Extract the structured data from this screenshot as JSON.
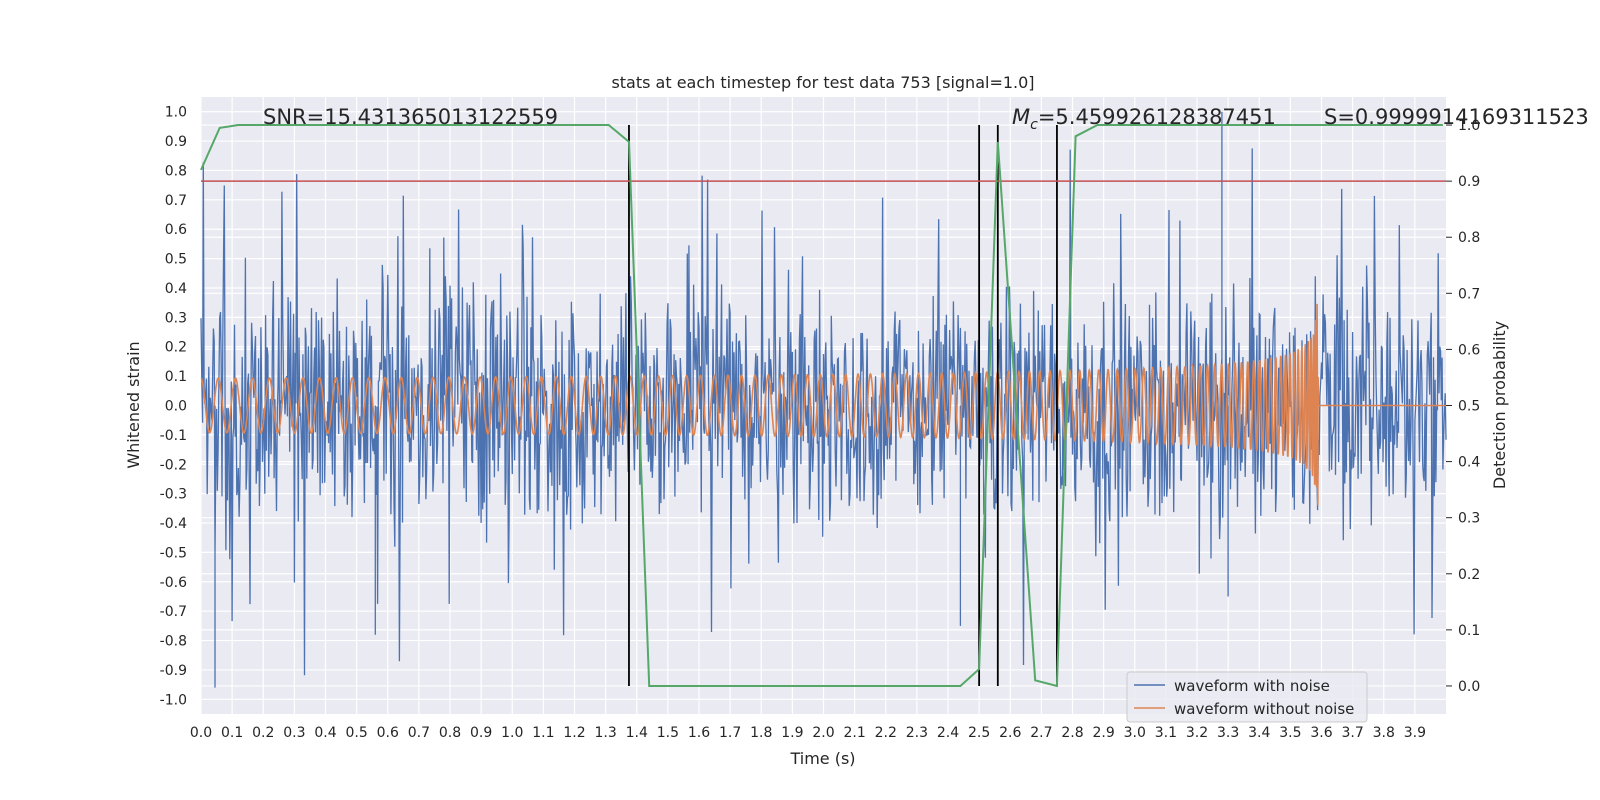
{
  "chart_data": {
    "type": "line",
    "title": "stats at each timestep for test data 753 [signal=1.0]",
    "xlabel": "Time (s)",
    "ylabel_left": "Whitened strain",
    "ylabel_right": "Detection probability",
    "xlim": [
      0.0,
      4.0
    ],
    "ylim_left": [
      -1.05,
      1.05
    ],
    "ylim_right": [
      -0.05,
      1.05
    ],
    "x_ticks": [
      "0.0",
      "0.1",
      "0.2",
      "0.3",
      "0.4",
      "0.5",
      "0.6",
      "0.7",
      "0.8",
      "0.9",
      "1.0",
      "1.1",
      "1.2",
      "1.3",
      "1.4",
      "1.5",
      "1.6",
      "1.7",
      "1.8",
      "1.9",
      "2.0",
      "2.1",
      "2.2",
      "2.3",
      "2.4",
      "2.5",
      "2.6",
      "2.7",
      "2.8",
      "2.9",
      "3.0",
      "3.1",
      "3.2",
      "3.3",
      "3.4",
      "3.5",
      "3.6",
      "3.7",
      "3.8",
      "3.9"
    ],
    "y_ticks_left": [
      "1.0",
      "0.9",
      "0.8",
      "0.7",
      "0.6",
      "0.5",
      "0.4",
      "0.3",
      "0.2",
      "0.1",
      "0.0",
      "-0.1",
      "-0.2",
      "-0.3",
      "-0.4",
      "-0.5",
      "-0.6",
      "-0.7",
      "-0.8",
      "-0.9",
      "-1.0"
    ],
    "y_ticks_right": [
      "1.0",
      "0.9",
      "0.8",
      "0.7",
      "0.6",
      "0.5",
      "0.4",
      "0.3",
      "0.2",
      "0.1",
      "0.0"
    ],
    "grid": true,
    "legend_position": "bottom-right",
    "threshold": 0.9,
    "threshold_color": "#c44e52",
    "vertical_lines": [
      1.375,
      2.5,
      2.56,
      2.75
    ],
    "annotations": {
      "snr": "SNR=15.431365013122559",
      "mc_symbol": "M",
      "mc_subscript": "c",
      "mc_value": "=5.459926128387451",
      "s": "S=0.9999914169311523"
    },
    "series": [
      {
        "name": "waveform with noise",
        "color": "#4c72b0",
        "kind": "noise",
        "amplitude_range": [
          -0.96,
          1.0
        ]
      },
      {
        "name": "waveform without noise",
        "color": "#dd8452",
        "kind": "chirp",
        "amplitude_start": 0.035,
        "amplitude_end": 0.35,
        "merger_time": 3.59
      },
      {
        "name": "detection probability",
        "color": "#55a868",
        "axis": "right",
        "x": [
          0.0,
          0.06,
          0.12,
          0.5,
          1.0,
          1.31,
          1.375,
          1.44,
          1.6,
          2.0,
          2.3,
          2.44,
          2.5,
          2.56,
          2.68,
          2.75,
          2.81,
          2.88,
          3.0,
          3.5,
          3.99
        ],
        "y": [
          0.92,
          0.995,
          1.0,
          1.0,
          1.0,
          1.0,
          0.97,
          0.0,
          0.0,
          0.0,
          0.0,
          0.0,
          0.03,
          0.97,
          0.01,
          0.0,
          0.98,
          1.0,
          1.0,
          1.0,
          1.0
        ]
      }
    ]
  }
}
